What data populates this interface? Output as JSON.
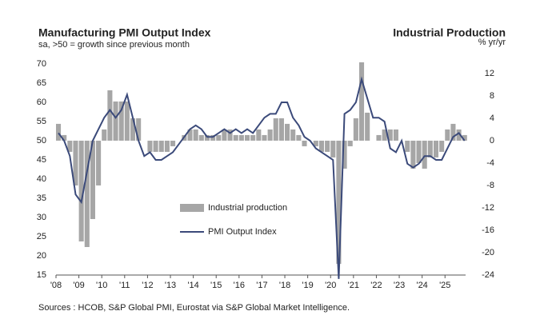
{
  "chart_data": {
    "type": "bar_line",
    "title": "Manufacturing PMI Output Index",
    "subtitle": "sa, >50 = growth since previous month",
    "y2_title": "Industrial Production",
    "y2_subtitle": "% yr/yr",
    "source": "Sources : HCOB, S&P Global PMI, Eurostat via S&P Global Market Intelligence.",
    "x": [
      2008.0,
      2008.25,
      2008.5,
      2008.75,
      2009.0,
      2009.25,
      2009.5,
      2009.75,
      2010.0,
      2010.25,
      2010.5,
      2010.75,
      2011.0,
      2011.25,
      2011.5,
      2011.75,
      2012.0,
      2012.25,
      2012.5,
      2012.75,
      2013.0,
      2013.25,
      2013.5,
      2013.75,
      2014.0,
      2014.25,
      2014.5,
      2014.75,
      2015.0,
      2015.25,
      2015.5,
      2015.75,
      2016.0,
      2016.25,
      2016.5,
      2016.75,
      2017.0,
      2017.25,
      2017.5,
      2017.75,
      2018.0,
      2018.25,
      2018.5,
      2018.75,
      2019.0,
      2019.25,
      2019.5,
      2019.75,
      2020.0,
      2020.25,
      2020.5,
      2020.75,
      2021.0,
      2021.25,
      2021.5,
      2021.75,
      2022.0,
      2022.25,
      2022.5,
      2022.75,
      2023.0,
      2023.25,
      2023.5,
      2023.75,
      2024.0,
      2024.25,
      2024.5,
      2024.75,
      2025.0,
      2025.25,
      2025.5,
      2025.75
    ],
    "series": [
      {
        "name": "Industrial production",
        "type": "bar",
        "axis": "y2",
        "color": "#a6a6a6",
        "values": [
          3,
          1,
          -2,
          -8,
          -18,
          -19,
          -14,
          -8,
          2,
          9,
          7,
          7,
          7,
          4,
          4,
          0,
          -2,
          -2,
          -2,
          -2,
          -1,
          0,
          1,
          2,
          2,
          1,
          1,
          1,
          1,
          2,
          2,
          1,
          1,
          1,
          1,
          2,
          1,
          2,
          4,
          4,
          3,
          2,
          1,
          -1,
          0,
          -1,
          -2,
          -2,
          -3,
          -22,
          -5,
          -1,
          4,
          14,
          5,
          0,
          1,
          2,
          2,
          2,
          0,
          -2,
          -5,
          -4,
          -5,
          -3,
          -3,
          -2,
          2,
          3,
          2,
          1
        ]
      },
      {
        "name": "PMI Output Index",
        "type": "line",
        "color": "#3b4a7a",
        "values": [
          52,
          50,
          46,
          36,
          34,
          42,
          50,
          53,
          56,
          58,
          56,
          58,
          62,
          56,
          50,
          46,
          47,
          45,
          45,
          46,
          47,
          49,
          51,
          53,
          54,
          53,
          51,
          51,
          52,
          53,
          52,
          53,
          52,
          53,
          52,
          54,
          56,
          57,
          57,
          60,
          60,
          56,
          54,
          51,
          50,
          48,
          47,
          46,
          45,
          14,
          57,
          58,
          60,
          66,
          61,
          56,
          56,
          55,
          48,
          47,
          50,
          44,
          43,
          44,
          46,
          46,
          45,
          45,
          48,
          51,
          52,
          50
        ]
      }
    ],
    "xlim": [
      2008,
      2025.9
    ],
    "xticks": [
      {
        "value": 2008,
        "label": "'08"
      },
      {
        "value": 2009,
        "label": "'09"
      },
      {
        "value": 2010,
        "label": "'10"
      },
      {
        "value": 2011,
        "label": "'11"
      },
      {
        "value": 2012,
        "label": "'12"
      },
      {
        "value": 2013,
        "label": "'13"
      },
      {
        "value": 2014,
        "label": "'14"
      },
      {
        "value": 2015,
        "label": "'15"
      },
      {
        "value": 2016,
        "label": "'16"
      },
      {
        "value": 2017,
        "label": "'17"
      },
      {
        "value": 2018,
        "label": "'18"
      },
      {
        "value": 2019,
        "label": "'19"
      },
      {
        "value": 2020,
        "label": "'20"
      },
      {
        "value": 2021,
        "label": "'21"
      },
      {
        "value": 2022,
        "label": "'22"
      },
      {
        "value": 2023,
        "label": "'23"
      },
      {
        "value": 2024,
        "label": "'24"
      },
      {
        "value": 2025,
        "label": "'25"
      }
    ],
    "ylim": [
      15,
      70
    ],
    "yticks": [
      15,
      20,
      25,
      30,
      35,
      40,
      45,
      50,
      55,
      60,
      65,
      70
    ],
    "y2lim": [
      -24,
      13.7
    ],
    "y2ticks": [
      -24,
      -20,
      -16,
      -12,
      -8,
      -4,
      0,
      4,
      8,
      12
    ],
    "grid": false
  }
}
